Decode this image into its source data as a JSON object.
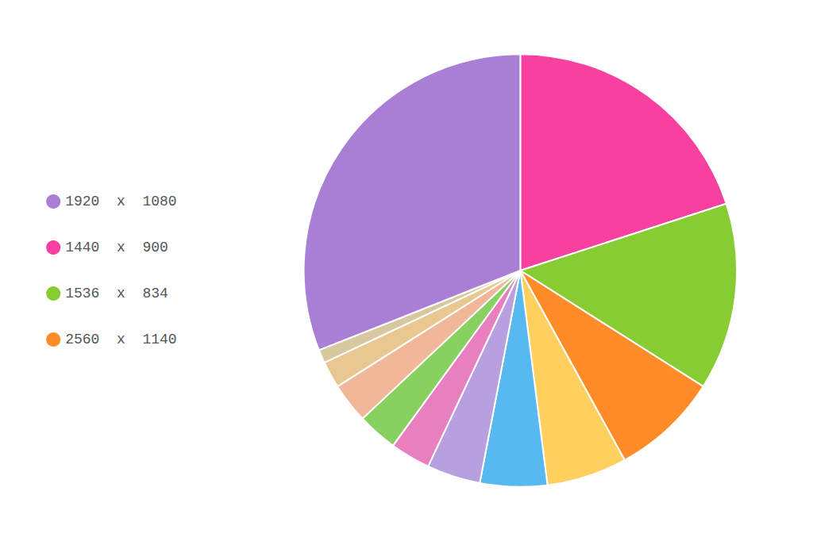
{
  "chart_data": {
    "type": "pie",
    "categories": [
      "1440  x  900",
      "1536  x  834",
      "2560  x  1140",
      null,
      null,
      null,
      null,
      null,
      null,
      null,
      null,
      "1920  x  1080"
    ],
    "values": [
      20,
      14,
      8,
      6,
      5,
      4,
      3,
      3,
      3,
      2,
      1,
      31
    ],
    "colors": [
      "#f840a0",
      "#88cc33",
      "#ff8c28",
      "#ffd060",
      "#58b8f0",
      "#b8a0e0",
      "#e880c0",
      "#88d060",
      "#f0b898",
      "#e8c890",
      "#d8c8a0",
      "#a87fd4"
    ],
    "legend": "left"
  }
}
